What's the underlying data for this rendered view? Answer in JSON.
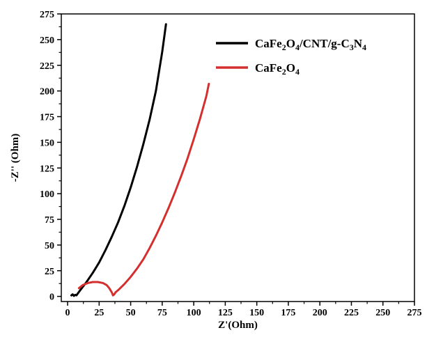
{
  "chart_data": {
    "type": "line",
    "title": "",
    "xlabel": "Z'(Ohm)",
    "ylabel": "-Z'' (Ohm)",
    "xlim": [
      -5,
      275
    ],
    "ylim": [
      -5,
      275
    ],
    "xticks": [
      0,
      25,
      50,
      75,
      100,
      125,
      150,
      175,
      200,
      225,
      250,
      275
    ],
    "yticks": [
      0,
      25,
      50,
      75,
      100,
      125,
      150,
      175,
      200,
      225,
      250,
      275
    ],
    "grid": false,
    "legend_position": "top-right",
    "series": [
      {
        "name": "CaFe2O4/CNT/g-C3N4",
        "legend_parts": [
          {
            "t": "CaFe",
            "sub": false
          },
          {
            "t": "2",
            "sub": true
          },
          {
            "t": "O",
            "sub": false
          },
          {
            "t": "4",
            "sub": true
          },
          {
            "t": "/CNT/g-C",
            "sub": false
          },
          {
            "t": "3",
            "sub": true
          },
          {
            "t": "N",
            "sub": false
          },
          {
            "t": "4",
            "sub": true
          }
        ],
        "color": "#000000",
        "x": [
          3,
          4,
          5,
          6,
          7,
          10,
          15,
          20,
          25,
          30,
          35,
          40,
          45,
          50,
          55,
          60,
          65,
          70,
          75,
          78
        ],
        "y": [
          1,
          2,
          0.5,
          1.5,
          1,
          6,
          14,
          23,
          33,
          45,
          58,
          72,
          88,
          106,
          126,
          148,
          172,
          200,
          238,
          265
        ]
      },
      {
        "name": "CaFe2O4",
        "legend_parts": [
          {
            "t": "CaFe",
            "sub": false
          },
          {
            "t": "2",
            "sub": true
          },
          {
            "t": "O",
            "sub": false
          },
          {
            "t": "4",
            "sub": true
          }
        ],
        "color": "#d42f2f",
        "x": [
          9,
          12,
          16,
          20,
          24,
          28,
          31,
          33,
          35,
          36,
          37,
          38,
          40,
          45,
          50,
          55,
          60,
          65,
          70,
          75,
          80,
          85,
          90,
          95,
          100,
          105,
          110,
          112
        ],
        "y": [
          8,
          11,
          13,
          14,
          14,
          13,
          11,
          8,
          4,
          1,
          2,
          4,
          6,
          12,
          19,
          27,
          36,
          47,
          59,
          72,
          86,
          101,
          117,
          134,
          153,
          173,
          195,
          207
        ]
      }
    ]
  }
}
